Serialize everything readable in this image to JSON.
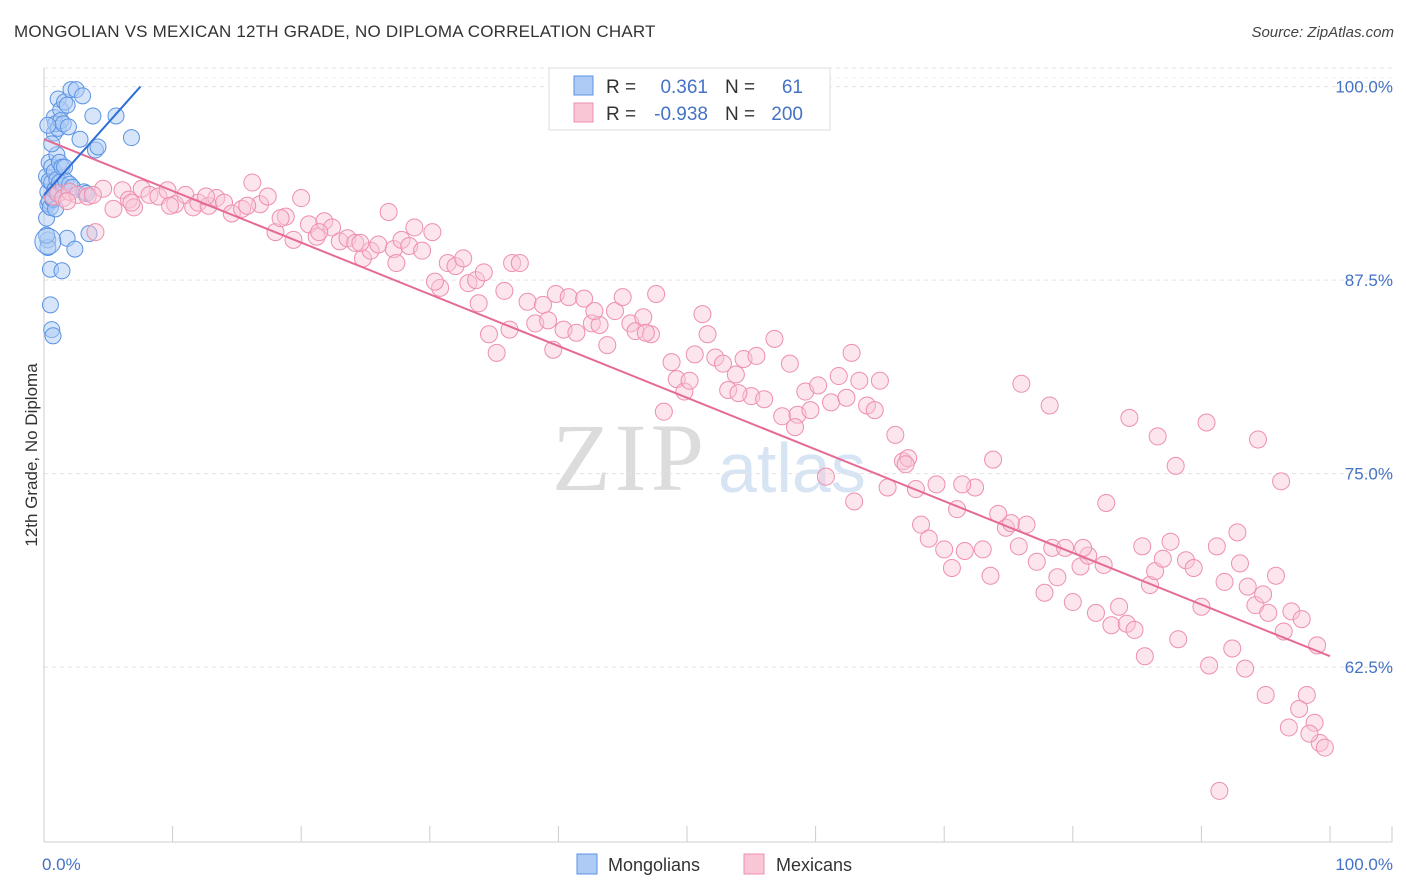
{
  "title": "MONGOLIAN VS MEXICAN 12TH GRADE, NO DIPLOMA CORRELATION CHART",
  "source": "Source: ZipAtlas.com",
  "watermark": {
    "zip": "ZIP",
    "atlas": "atlas"
  },
  "colors": {
    "accent": "#4472c4",
    "mongolian_fill": "#aecbf5",
    "mongolian_stroke": "#5b93e3",
    "mongolian_line": "#2f6fd6",
    "mexican_fill": "#f9c6d6",
    "mexican_stroke": "#ee8fae",
    "mexican_line": "#e56b94"
  },
  "legend": {
    "row1": {
      "r_label": "R =",
      "r_value": "0.361",
      "n_label": "N =",
      "n_value": "61"
    },
    "row2": {
      "r_label": "R =",
      "r_value": "-0.938",
      "n_label": "N =",
      "n_value": "200"
    }
  },
  "bottom_legend": {
    "series1": "Mongolians",
    "series2": "Mexicans"
  },
  "chart_data": {
    "type": "scatter",
    "title": "MONGOLIAN VS MEXICAN 12TH GRADE, NO DIPLOMA CORRELATION CHART",
    "xlabel": "",
    "ylabel": "12th Grade, No Diploma",
    "x_tick_labels": [
      "0.0%",
      "100.0%"
    ],
    "y_tick_labels": [
      "100.0%",
      "87.5%",
      "75.0%",
      "62.5%"
    ],
    "y_ticks": [
      100.0,
      87.5,
      75.0,
      62.5
    ],
    "xlim": [
      0,
      100
    ],
    "ylim": [
      51.2,
      101.2
    ],
    "grid": true,
    "legend_position": "top-center",
    "series": [
      {
        "name": "Mongolians",
        "r": 0.361,
        "n": 61,
        "trend": {
          "x": [
            0.0,
            7.5
          ],
          "y": [
            93.0,
            100.0
          ]
        },
        "points": [
          [
            0.2,
            91.5
          ],
          [
            0.2,
            94.2
          ],
          [
            0.3,
            93.2
          ],
          [
            0.3,
            90.1
          ],
          [
            0.3,
            89.6
          ],
          [
            0.3,
            92.4
          ],
          [
            0.4,
            95.1
          ],
          [
            0.4,
            92.6
          ],
          [
            0.4,
            93.9
          ],
          [
            0.5,
            88.2
          ],
          [
            0.5,
            85.9
          ],
          [
            0.5,
            92.2
          ],
          [
            0.6,
            94.8
          ],
          [
            0.6,
            93.8
          ],
          [
            0.6,
            84.3
          ],
          [
            0.7,
            92.7
          ],
          [
            0.7,
            83.9
          ],
          [
            0.7,
            92.8
          ],
          [
            0.8,
            97.0
          ],
          [
            0.8,
            94.5
          ],
          [
            0.8,
            93.3
          ],
          [
            0.8,
            98.0
          ],
          [
            0.9,
            97.6
          ],
          [
            0.9,
            93.4
          ],
          [
            0.9,
            92.1
          ],
          [
            1.0,
            95.6
          ],
          [
            1.0,
            94.0
          ],
          [
            1.1,
            97.3
          ],
          [
            1.1,
            99.2
          ],
          [
            1.2,
            95.1
          ],
          [
            1.2,
            93.8
          ],
          [
            1.3,
            98.5
          ],
          [
            1.3,
            97.8
          ],
          [
            1.4,
            94.8
          ],
          [
            1.4,
            88.1
          ],
          [
            1.5,
            97.6
          ],
          [
            1.5,
            93.6
          ],
          [
            1.6,
            99.0
          ],
          [
            1.6,
            94.8
          ],
          [
            1.7,
            93.9
          ],
          [
            1.8,
            98.8
          ],
          [
            1.8,
            90.2
          ],
          [
            1.9,
            97.4
          ],
          [
            2.0,
            93.7
          ],
          [
            2.1,
            99.8
          ],
          [
            2.2,
            93.5
          ],
          [
            2.4,
            89.5
          ],
          [
            2.5,
            99.8
          ],
          [
            2.8,
            96.6
          ],
          [
            3.0,
            99.4
          ],
          [
            3.1,
            93.2
          ],
          [
            3.3,
            93.1
          ],
          [
            3.5,
            90.5
          ],
          [
            3.8,
            98.1
          ],
          [
            4.0,
            95.9
          ],
          [
            4.2,
            96.1
          ],
          [
            5.6,
            98.1
          ],
          [
            6.8,
            96.7
          ],
          [
            0.3,
            97.5
          ],
          [
            0.6,
            96.3
          ],
          [
            0.2,
            90.4
          ]
        ]
      },
      {
        "name": "Mexicans",
        "r": -0.938,
        "n": 200,
        "trend": {
          "x": [
            0.0,
            100.0
          ],
          "y": [
            96.6,
            63.2
          ]
        },
        "points": [
          [
            0.7,
            92.9
          ],
          [
            1.1,
            93.1
          ],
          [
            1.5,
            92.8
          ],
          [
            2.0,
            93.2
          ],
          [
            2.6,
            93.0
          ],
          [
            3.4,
            92.9
          ],
          [
            4.0,
            90.6
          ],
          [
            4.6,
            93.4
          ],
          [
            5.4,
            92.1
          ],
          [
            6.1,
            93.3
          ],
          [
            6.6,
            92.7
          ],
          [
            7.0,
            92.2
          ],
          [
            7.6,
            93.4
          ],
          [
            8.2,
            93.0
          ],
          [
            8.9,
            92.9
          ],
          [
            9.6,
            93.3
          ],
          [
            10.2,
            92.4
          ],
          [
            11.0,
            93.0
          ],
          [
            11.6,
            92.2
          ],
          [
            12.0,
            92.5
          ],
          [
            12.8,
            92.3
          ],
          [
            13.4,
            92.8
          ],
          [
            14.0,
            92.5
          ],
          [
            14.6,
            91.8
          ],
          [
            15.4,
            92.1
          ],
          [
            16.2,
            93.8
          ],
          [
            16.8,
            92.4
          ],
          [
            17.4,
            92.9
          ],
          [
            18.0,
            90.6
          ],
          [
            18.8,
            91.6
          ],
          [
            19.4,
            90.1
          ],
          [
            20.0,
            92.8
          ],
          [
            20.6,
            91.1
          ],
          [
            21.2,
            90.3
          ],
          [
            21.8,
            91.3
          ],
          [
            22.4,
            90.9
          ],
          [
            23.0,
            90.0
          ],
          [
            23.6,
            90.2
          ],
          [
            24.2,
            89.9
          ],
          [
            24.8,
            88.9
          ],
          [
            25.4,
            89.4
          ],
          [
            26.0,
            89.8
          ],
          [
            26.8,
            91.9
          ],
          [
            27.2,
            89.5
          ],
          [
            27.8,
            90.1
          ],
          [
            28.4,
            89.7
          ],
          [
            28.8,
            90.9
          ],
          [
            29.4,
            89.4
          ],
          [
            30.2,
            90.6
          ],
          [
            30.8,
            87.0
          ],
          [
            31.4,
            88.6
          ],
          [
            32.0,
            88.4
          ],
          [
            32.6,
            88.9
          ],
          [
            33.0,
            87.3
          ],
          [
            33.6,
            87.5
          ],
          [
            34.2,
            88.0
          ],
          [
            34.6,
            84.0
          ],
          [
            35.2,
            82.8
          ],
          [
            35.8,
            86.8
          ],
          [
            36.4,
            88.6
          ],
          [
            37.0,
            88.6
          ],
          [
            37.6,
            86.1
          ],
          [
            38.2,
            84.7
          ],
          [
            38.8,
            85.9
          ],
          [
            39.2,
            84.9
          ],
          [
            39.8,
            86.6
          ],
          [
            40.4,
            84.3
          ],
          [
            40.8,
            86.4
          ],
          [
            41.4,
            84.1
          ],
          [
            42.0,
            86.3
          ],
          [
            42.6,
            84.7
          ],
          [
            43.2,
            84.6
          ],
          [
            43.8,
            83.3
          ],
          [
            44.4,
            85.5
          ],
          [
            45.0,
            86.4
          ],
          [
            45.6,
            84.7
          ],
          [
            46.0,
            84.2
          ],
          [
            46.6,
            85.1
          ],
          [
            47.2,
            84.0
          ],
          [
            47.6,
            86.6
          ],
          [
            48.2,
            79.0
          ],
          [
            48.8,
            82.2
          ],
          [
            49.2,
            81.1
          ],
          [
            49.8,
            80.3
          ],
          [
            50.6,
            82.7
          ],
          [
            51.2,
            85.3
          ],
          [
            51.6,
            84.0
          ],
          [
            52.2,
            82.5
          ],
          [
            52.8,
            82.1
          ],
          [
            53.2,
            80.4
          ],
          [
            53.8,
            81.4
          ],
          [
            54.4,
            82.4
          ],
          [
            55.0,
            80.0
          ],
          [
            55.4,
            82.6
          ],
          [
            56.0,
            79.8
          ],
          [
            56.8,
            83.7
          ],
          [
            57.4,
            78.7
          ],
          [
            58.0,
            82.1
          ],
          [
            58.6,
            78.8
          ],
          [
            59.2,
            80.3
          ],
          [
            59.6,
            79.1
          ],
          [
            60.2,
            80.7
          ],
          [
            60.8,
            74.8
          ],
          [
            61.2,
            79.6
          ],
          [
            61.8,
            81.3
          ],
          [
            62.4,
            79.9
          ],
          [
            62.8,
            82.8
          ],
          [
            63.4,
            81.0
          ],
          [
            64.0,
            79.4
          ],
          [
            64.6,
            79.1
          ],
          [
            65.0,
            81.0
          ],
          [
            65.6,
            74.1
          ],
          [
            66.2,
            77.5
          ],
          [
            66.8,
            75.8
          ],
          [
            67.2,
            76.0
          ],
          [
            67.8,
            74.0
          ],
          [
            68.2,
            71.7
          ],
          [
            68.8,
            70.8
          ],
          [
            69.4,
            74.3
          ],
          [
            70.0,
            70.1
          ],
          [
            70.6,
            68.9
          ],
          [
            71.0,
            72.7
          ],
          [
            71.6,
            70.0
          ],
          [
            72.4,
            74.1
          ],
          [
            73.0,
            70.1
          ],
          [
            73.6,
            68.4
          ],
          [
            74.2,
            72.4
          ],
          [
            74.8,
            71.5
          ],
          [
            75.2,
            71.8
          ],
          [
            75.8,
            70.3
          ],
          [
            76.4,
            71.7
          ],
          [
            77.2,
            69.3
          ],
          [
            77.8,
            67.3
          ],
          [
            78.4,
            70.2
          ],
          [
            78.8,
            68.3
          ],
          [
            79.4,
            70.2
          ],
          [
            80.0,
            66.7
          ],
          [
            80.6,
            69.0
          ],
          [
            81.2,
            69.7
          ],
          [
            81.8,
            66.0
          ],
          [
            82.4,
            69.1
          ],
          [
            83.0,
            65.2
          ],
          [
            83.6,
            66.4
          ],
          [
            84.2,
            65.3
          ],
          [
            84.8,
            64.9
          ],
          [
            85.4,
            70.3
          ],
          [
            86.0,
            67.8
          ],
          [
            86.4,
            68.7
          ],
          [
            87.0,
            69.5
          ],
          [
            87.6,
            70.6
          ],
          [
            88.2,
            64.3
          ],
          [
            88.8,
            69.4
          ],
          [
            89.4,
            68.9
          ],
          [
            90.0,
            66.4
          ],
          [
            90.6,
            62.6
          ],
          [
            91.2,
            70.3
          ],
          [
            91.8,
            68.0
          ],
          [
            92.4,
            63.7
          ],
          [
            93.0,
            69.2
          ],
          [
            93.6,
            67.7
          ],
          [
            94.2,
            66.5
          ],
          [
            94.8,
            67.2
          ],
          [
            95.2,
            66.0
          ],
          [
            95.8,
            68.4
          ],
          [
            96.4,
            64.8
          ],
          [
            97.0,
            66.1
          ],
          [
            97.6,
            59.8
          ],
          [
            98.2,
            60.7
          ],
          [
            98.8,
            58.9
          ],
          [
            99.2,
            57.6
          ],
          [
            99.6,
            57.3
          ],
          [
            73.8,
            75.9
          ],
          [
            76.0,
            80.8
          ],
          [
            78.2,
            79.4
          ],
          [
            82.6,
            73.1
          ],
          [
            84.4,
            78.6
          ],
          [
            86.6,
            77.4
          ],
          [
            88.0,
            75.5
          ],
          [
            90.4,
            78.3
          ],
          [
            92.8,
            71.2
          ],
          [
            94.4,
            77.2
          ],
          [
            96.2,
            74.5
          ],
          [
            97.8,
            65.6
          ],
          [
            99.0,
            63.9
          ],
          [
            93.4,
            62.4
          ],
          [
            95.0,
            60.7
          ],
          [
            96.8,
            58.6
          ],
          [
            98.4,
            58.2
          ],
          [
            91.4,
            54.5
          ],
          [
            85.6,
            63.2
          ],
          [
            80.8,
            70.2
          ],
          [
            71.4,
            74.3
          ],
          [
            67.0,
            75.6
          ],
          [
            63.0,
            73.2
          ],
          [
            58.4,
            78.0
          ],
          [
            54.0,
            80.2
          ],
          [
            50.2,
            81.0
          ],
          [
            46.8,
            84.1
          ],
          [
            42.8,
            85.5
          ],
          [
            39.6,
            83.0
          ],
          [
            36.2,
            84.3
          ],
          [
            33.8,
            86.0
          ],
          [
            30.4,
            87.4
          ],
          [
            27.4,
            88.6
          ],
          [
            24.6,
            89.9
          ],
          [
            21.4,
            90.6
          ],
          [
            18.4,
            91.5
          ],
          [
            15.8,
            92.3
          ],
          [
            12.6,
            92.9
          ],
          [
            9.8,
            92.3
          ],
          [
            6.8,
            92.5
          ],
          [
            3.8,
            93.0
          ],
          [
            1.8,
            92.6
          ]
        ]
      }
    ]
  }
}
